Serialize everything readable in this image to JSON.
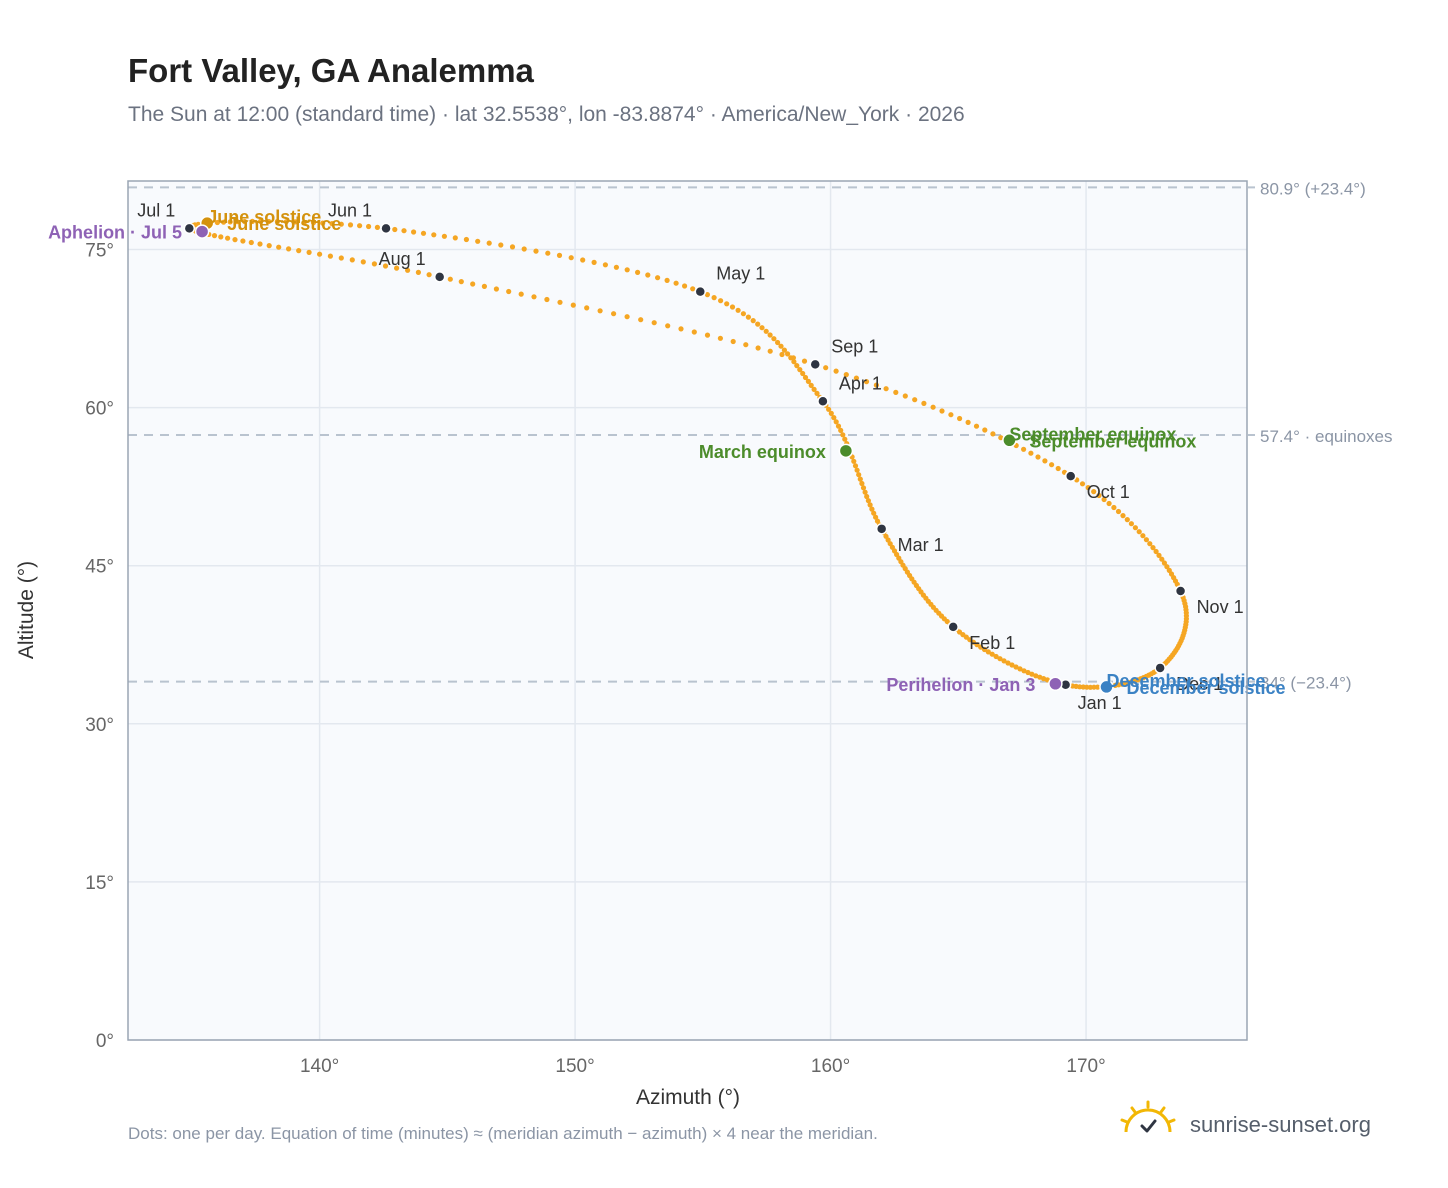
{
  "title": "Fort Valley, GA Analemma",
  "subtitle": "The Sun at 12:00 (standard time) · lat 32.5538°, lon -83.8874° · America/New_York · 2026",
  "footnote": "Dots: one per day. Equation of time (minutes) ≈ (meridian azimuth − azimuth) × 4 near the meridian.",
  "brand": {
    "name": "sunrise-sunset.org",
    "icon": "sun-check-icon"
  },
  "colors": {
    "curve": "#f5a623",
    "month": "#2f3542",
    "solstice_june": "#d4920e",
    "solstice_december": "#3b82c4",
    "equinox": "#4c8c2b",
    "apsis": "#8e62b5",
    "plot_bg": "#f8fafd",
    "grid": "#e3e8ef",
    "frame": "#9aa5b4"
  },
  "chart_data": {
    "type": "scatter",
    "xlabel": "Azimuth (°)",
    "ylabel": "Altitude (°)",
    "xlim": [
      132.5,
      176.3
    ],
    "ylim": [
      0,
      81.5
    ],
    "xticks": [
      {
        "value": 140,
        "label": "140°"
      },
      {
        "value": 150,
        "label": "150°"
      },
      {
        "value": 160,
        "label": "160°"
      },
      {
        "value": 170,
        "label": "170°"
      }
    ],
    "yticks": [
      {
        "value": 0,
        "label": "0°"
      },
      {
        "value": 15,
        "label": "15°"
      },
      {
        "value": 30,
        "label": "30°"
      },
      {
        "value": 45,
        "label": "45°"
      },
      {
        "value": 60,
        "label": "60°"
      },
      {
        "value": 75,
        "label": "75°"
      }
    ],
    "grid": true,
    "reference_lines": [
      {
        "y": 80.9,
        "label": "80.9° (+23.4°)"
      },
      {
        "y": 57.4,
        "label": "57.4° · equinoxes"
      },
      {
        "y": 34.0,
        "label": "34° (−23.4°)"
      }
    ],
    "curve_series": "one dot per day",
    "analemma": [
      {
        "label": "Jan 1",
        "x": 169.2,
        "y": 33.7,
        "label_pos": "below"
      },
      {
        "label": "Feb 1",
        "x": 164.8,
        "y": 39.2,
        "label_pos": "right"
      },
      {
        "label": "Mar 1",
        "x": 162.0,
        "y": 48.5,
        "label_pos": "right"
      },
      {
        "label": "Apr 1",
        "x": 159.7,
        "y": 60.6,
        "label_pos": "upright"
      },
      {
        "label": "May 1",
        "x": 154.9,
        "y": 71.0,
        "label_pos": "upright"
      },
      {
        "label": "Jun 1",
        "x": 142.6,
        "y": 77.0,
        "label_pos": "upleft"
      },
      {
        "label": "Jul 1",
        "x": 134.9,
        "y": 77.0,
        "label_pos": "upleft"
      },
      {
        "label": "Aug 1",
        "x": 144.7,
        "y": 72.4,
        "label_pos": "upleft"
      },
      {
        "label": "Sep 1",
        "x": 159.4,
        "y": 64.1,
        "label_pos": "upright"
      },
      {
        "label": "Oct 1",
        "x": 169.4,
        "y": 53.5,
        "label_pos": "right"
      },
      {
        "label": "Nov 1",
        "x": 173.7,
        "y": 42.6,
        "label_pos": "right"
      },
      {
        "label": "Dec 1",
        "x": 172.9,
        "y": 35.3,
        "label_pos": "right"
      }
    ],
    "events": [
      {
        "label": "March equinox",
        "x": 160.6,
        "y": 55.9,
        "kind": "equinox",
        "label_pos": "left"
      },
      {
        "label": "June solstice",
        "x": 135.6,
        "y": 77.5,
        "kind": "solstice_june",
        "label_pos": "right"
      },
      {
        "label": "September equinox",
        "x": 167.0,
        "y": 56.9,
        "kind": "equinox",
        "label_pos": "right"
      },
      {
        "label": "December solstice",
        "x": 170.8,
        "y": 33.5,
        "kind": "solstice_december",
        "label_pos": "right"
      },
      {
        "label": "Perihelion · Jan 3",
        "x": 168.8,
        "y": 33.8,
        "kind": "apsis",
        "label_pos": "left"
      },
      {
        "label": "Aphelion · Jul 5",
        "x": 135.4,
        "y": 76.7,
        "kind": "apsis",
        "label_pos": "left"
      }
    ]
  }
}
